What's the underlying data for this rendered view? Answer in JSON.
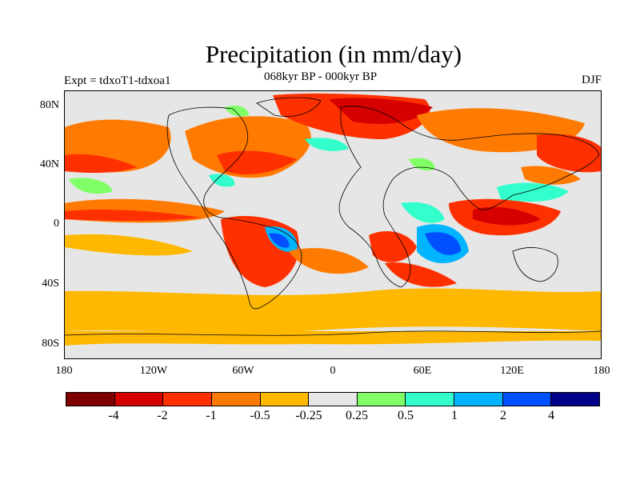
{
  "title": "Precipitation (in mm/day)",
  "left_string": "Expt = tdxoT1-tdxoa1",
  "center_string": "068kyr BP - 000kyr BP",
  "right_string": "DJF",
  "lat_labels": [
    "80N",
    "40N",
    "0",
    "40S",
    "80S"
  ],
  "lon_labels": [
    "180",
    "120W",
    "60W",
    "0",
    "60E",
    "120E",
    "180"
  ],
  "colorbar": {
    "colors": [
      "#800000",
      "#d60000",
      "#ff3000",
      "#ff7a00",
      "#ffb800",
      "#e6e6e6",
      "#80ff66",
      "#33ffcc",
      "#00b4ff",
      "#0050ff",
      "#00008b"
    ],
    "labels": [
      "-4",
      "-2",
      "-1",
      "-0.5",
      "-0.25",
      "0.25",
      "0.5",
      "1",
      "2",
      "4"
    ]
  },
  "colors": {
    "neutral": "#e6e6e6",
    "dry_strong": "#d60000",
    "dry": "#ff3000",
    "dry_mod": "#ff7a00",
    "dry_weak": "#ffb800",
    "wet_weak": "#80ff66",
    "wet": "#33ffcc",
    "wet_mod": "#00b4ff",
    "wet_strong": "#0050ff"
  }
}
